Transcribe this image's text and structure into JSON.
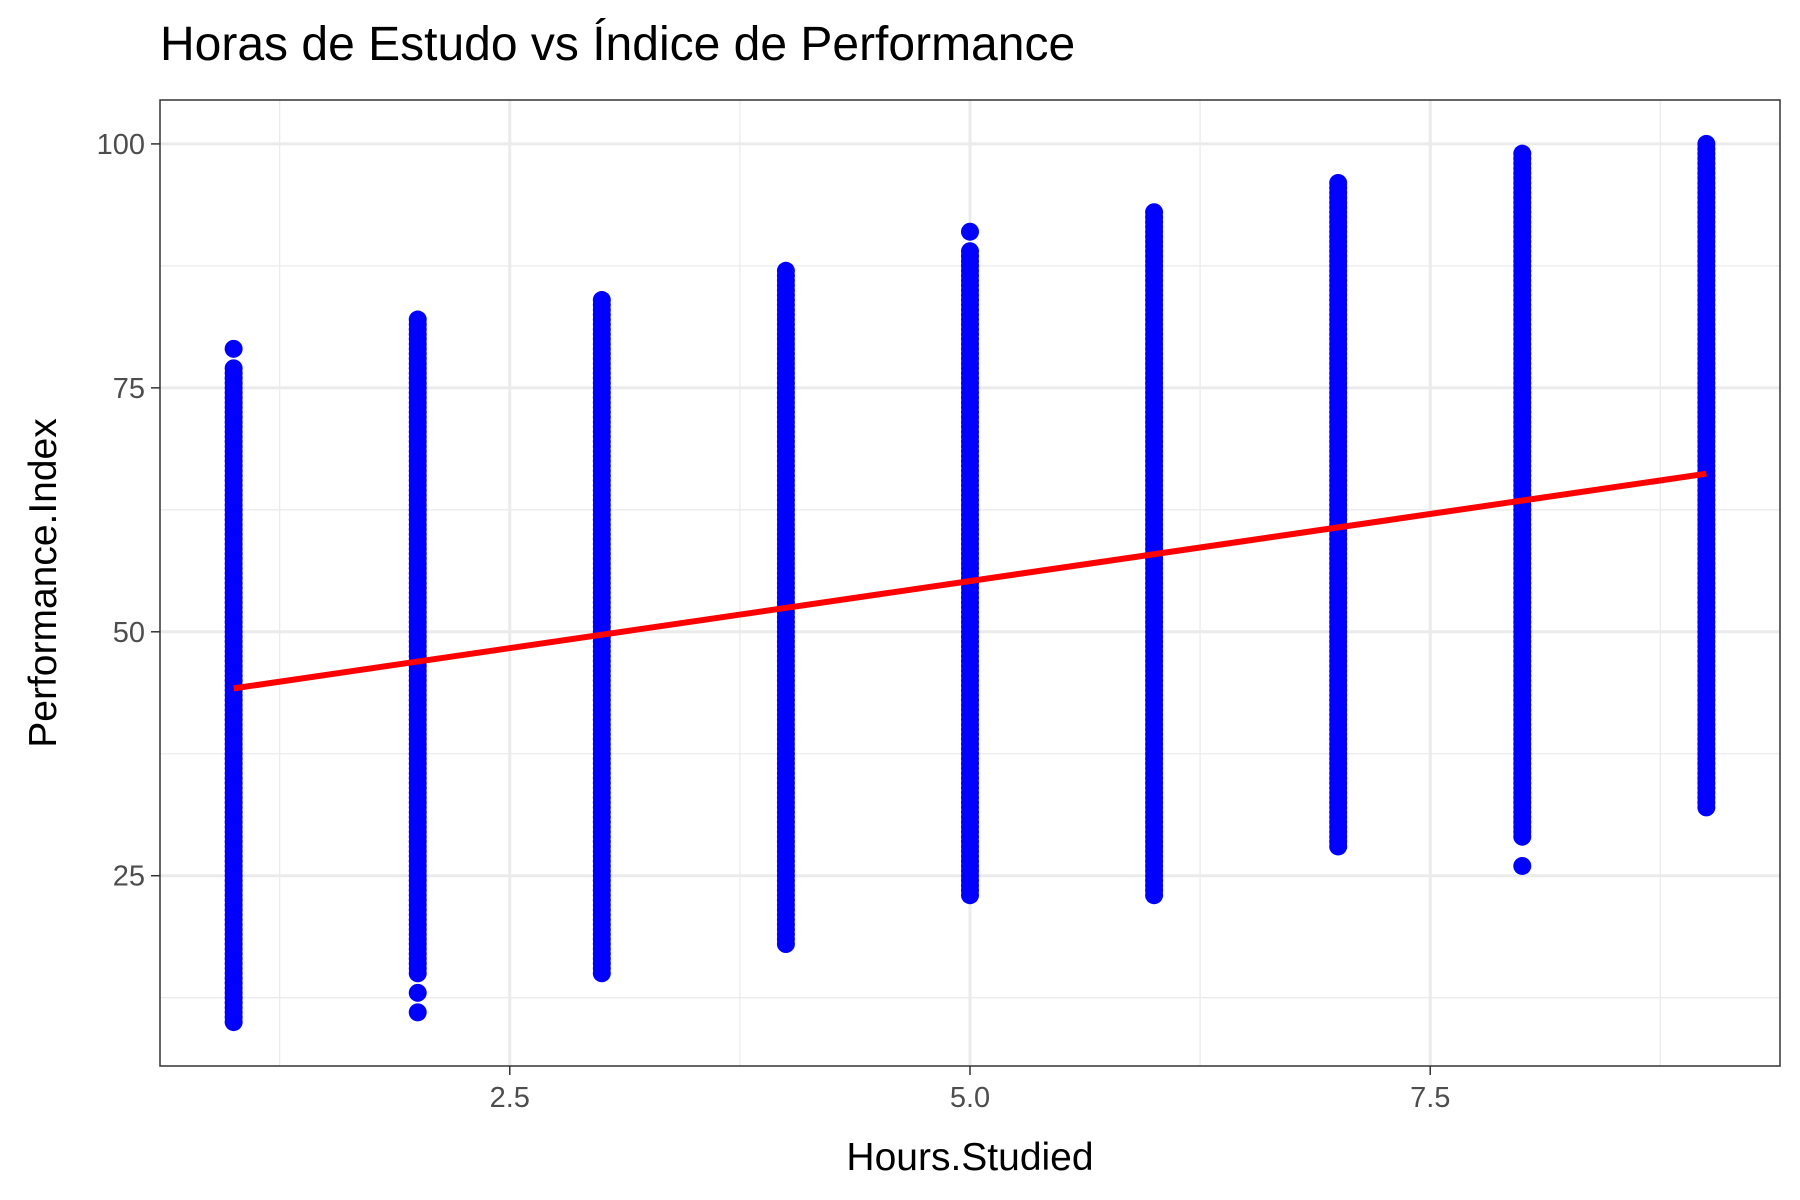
{
  "chart_data": {
    "type": "scatter",
    "title": "Horas de Estudo vs Índice de Performance",
    "xlabel": "Hours.Studied",
    "ylabel": "Performance.Index",
    "xlim": [
      0.6,
      9.4
    ],
    "ylim": [
      5.5,
      104.5
    ],
    "xticks": [
      2.5,
      5.0,
      7.5
    ],
    "xtick_labels": [
      "2.5",
      "5.0",
      "7.5"
    ],
    "yticks": [
      25,
      50,
      75,
      100
    ],
    "ytick_labels": [
      "25",
      "50",
      "75",
      "100"
    ],
    "grid": true,
    "legend": "none",
    "point_color": "#0000ff",
    "line_color": "#ff0000",
    "groups": [
      {
        "x": 1,
        "min": 10,
        "max": 77,
        "outliers": [
          79
        ]
      },
      {
        "x": 2,
        "min": 15,
        "max": 82,
        "outliers": [
          11,
          13
        ]
      },
      {
        "x": 3,
        "min": 15,
        "max": 84,
        "outliers": []
      },
      {
        "x": 4,
        "min": 18,
        "max": 87,
        "outliers": []
      },
      {
        "x": 5,
        "min": 23,
        "max": 89,
        "outliers": [
          91
        ]
      },
      {
        "x": 6,
        "min": 23,
        "max": 93,
        "outliers": []
      },
      {
        "x": 7,
        "min": 28,
        "max": 96,
        "outliers": []
      },
      {
        "x": 8,
        "min": 29,
        "max": 99,
        "outliers": [
          26
        ]
      },
      {
        "x": 9,
        "min": 32,
        "max": 100,
        "outliers": []
      }
    ],
    "regression": {
      "x": [
        1,
        9
      ],
      "y": [
        44.2,
        66.2
      ]
    }
  }
}
